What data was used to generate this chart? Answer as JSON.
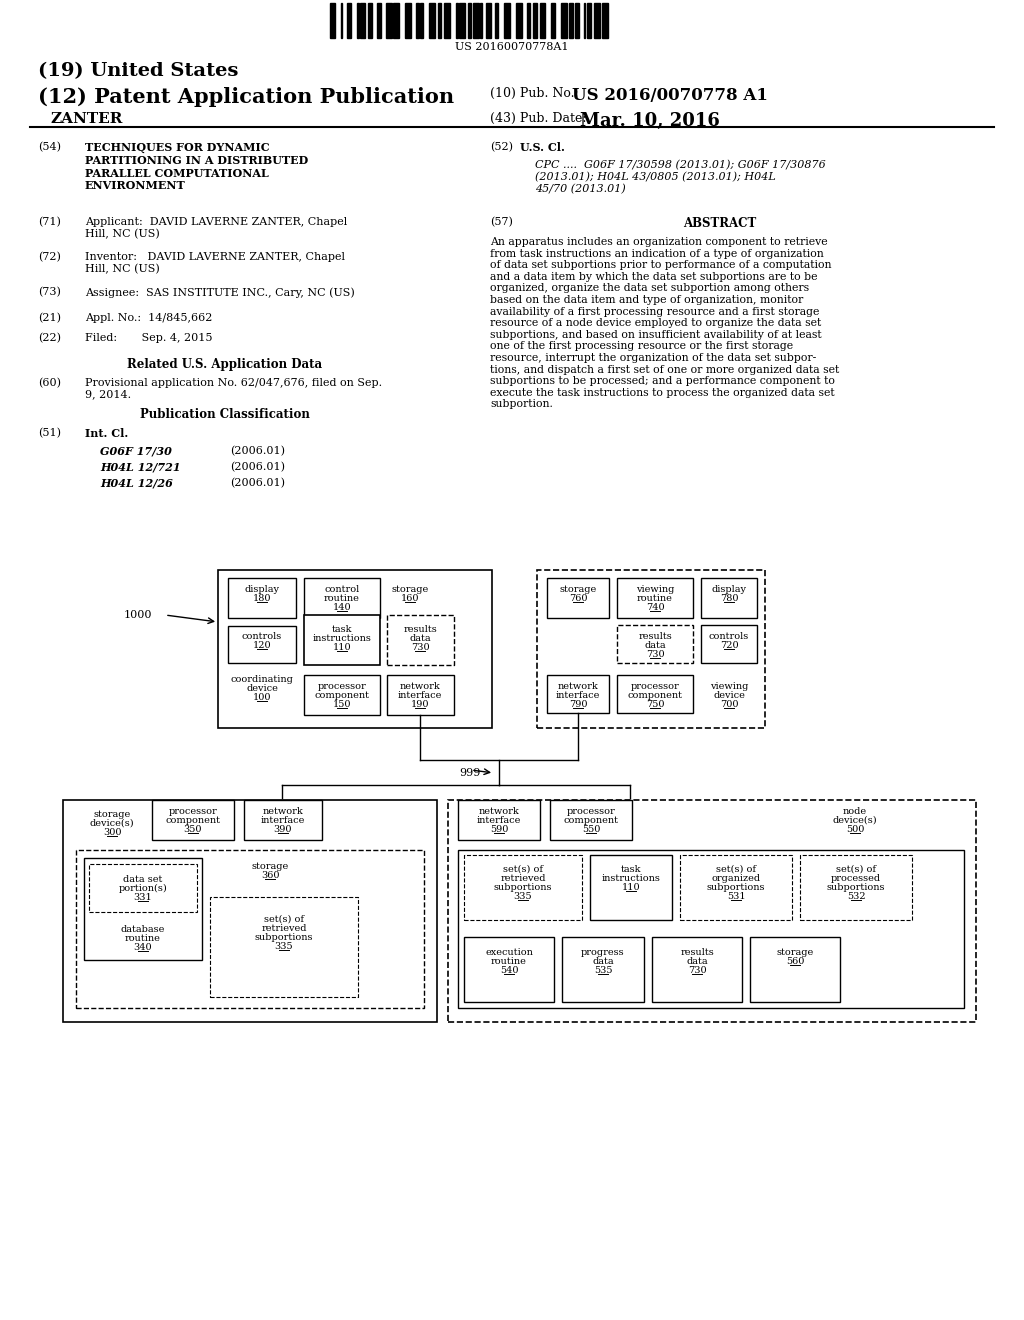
{
  "bg_color": "#ffffff",
  "barcode_text": "US 20160070778A1",
  "title_19": "(19) United States",
  "title_12": "(12) Patent Application Publication",
  "pub_no_label": "(10) Pub. No.:",
  "pub_no": "US 2016/0070778 A1",
  "inventor_name": "ZANTER",
  "pub_date_label": "(43) Pub. Date:",
  "pub_date": "Mar. 10, 2016",
  "field_54_label": "(54)",
  "field_54": "TECHNIQUES FOR DYNAMIC\nPARTITIONING IN A DISTRIBUTED\nPARALLEL COMPUTATIONAL\nENVIRONMENT",
  "field_52_label": "(52)",
  "field_52_title": "U.S. Cl.",
  "field_52_body": "CPC ....  G06F 17/30598 (2013.01); G06F 17/30876\n(2013.01); H04L 43/0805 (2013.01); H04L\n45/70 (2013.01)",
  "field_71_label": "(71)",
  "field_71": "Applicant:  DAVID LAVERNE ZANTER, Chapel\nHill, NC (US)",
  "field_57_label": "(57)",
  "field_57_title": "ABSTRACT",
  "abstract_text": "An apparatus includes an organization component to retrieve\nfrom task instructions an indication of a type of organization\nof data set subportions prior to performance of a computation\nand a data item by which the data set subportions are to be\norganized, organize the data set subportion among others\nbased on the data item and type of organization, monitor\navailability of a first processing resource and a first storage\nresource of a node device employed to organize the data set\nsubportions, and based on insufficient availability of at least\none of the first processing resource or the first storage\nresource, interrupt the organization of the data set subpor-\ntions, and dispatch a first set of one or more organized data set\nsubportions to be processed; and a performance component to\nexecute the task instructions to process the organized data set\nsubportion.",
  "field_72_label": "(72)",
  "field_72": "Inventor:   DAVID LAVERNE ZANTER, Chapel\nHill, NC (US)",
  "field_73_label": "(73)",
  "field_73": "Assignee:  SAS INSTITUTE INC., Cary, NC (US)",
  "field_21_label": "(21)",
  "field_21": "Appl. No.:  14/845,662",
  "field_22_label": "(22)",
  "field_22": "Filed:       Sep. 4, 2015",
  "related_us_app_data": "Related U.S. Application Data",
  "field_60_label": "(60)",
  "field_60": "Provisional application No. 62/047,676, filed on Sep.\n9, 2014.",
  "pub_classification": "Publication Classification",
  "field_51_label": "(51)",
  "field_51_title": "Int. Cl.",
  "field_51_items": [
    [
      "G06F 17/30",
      "(2006.01)"
    ],
    [
      "H04L 12/721",
      "(2006.01)"
    ],
    [
      "H04L 12/26",
      "(2006.01)"
    ]
  ]
}
